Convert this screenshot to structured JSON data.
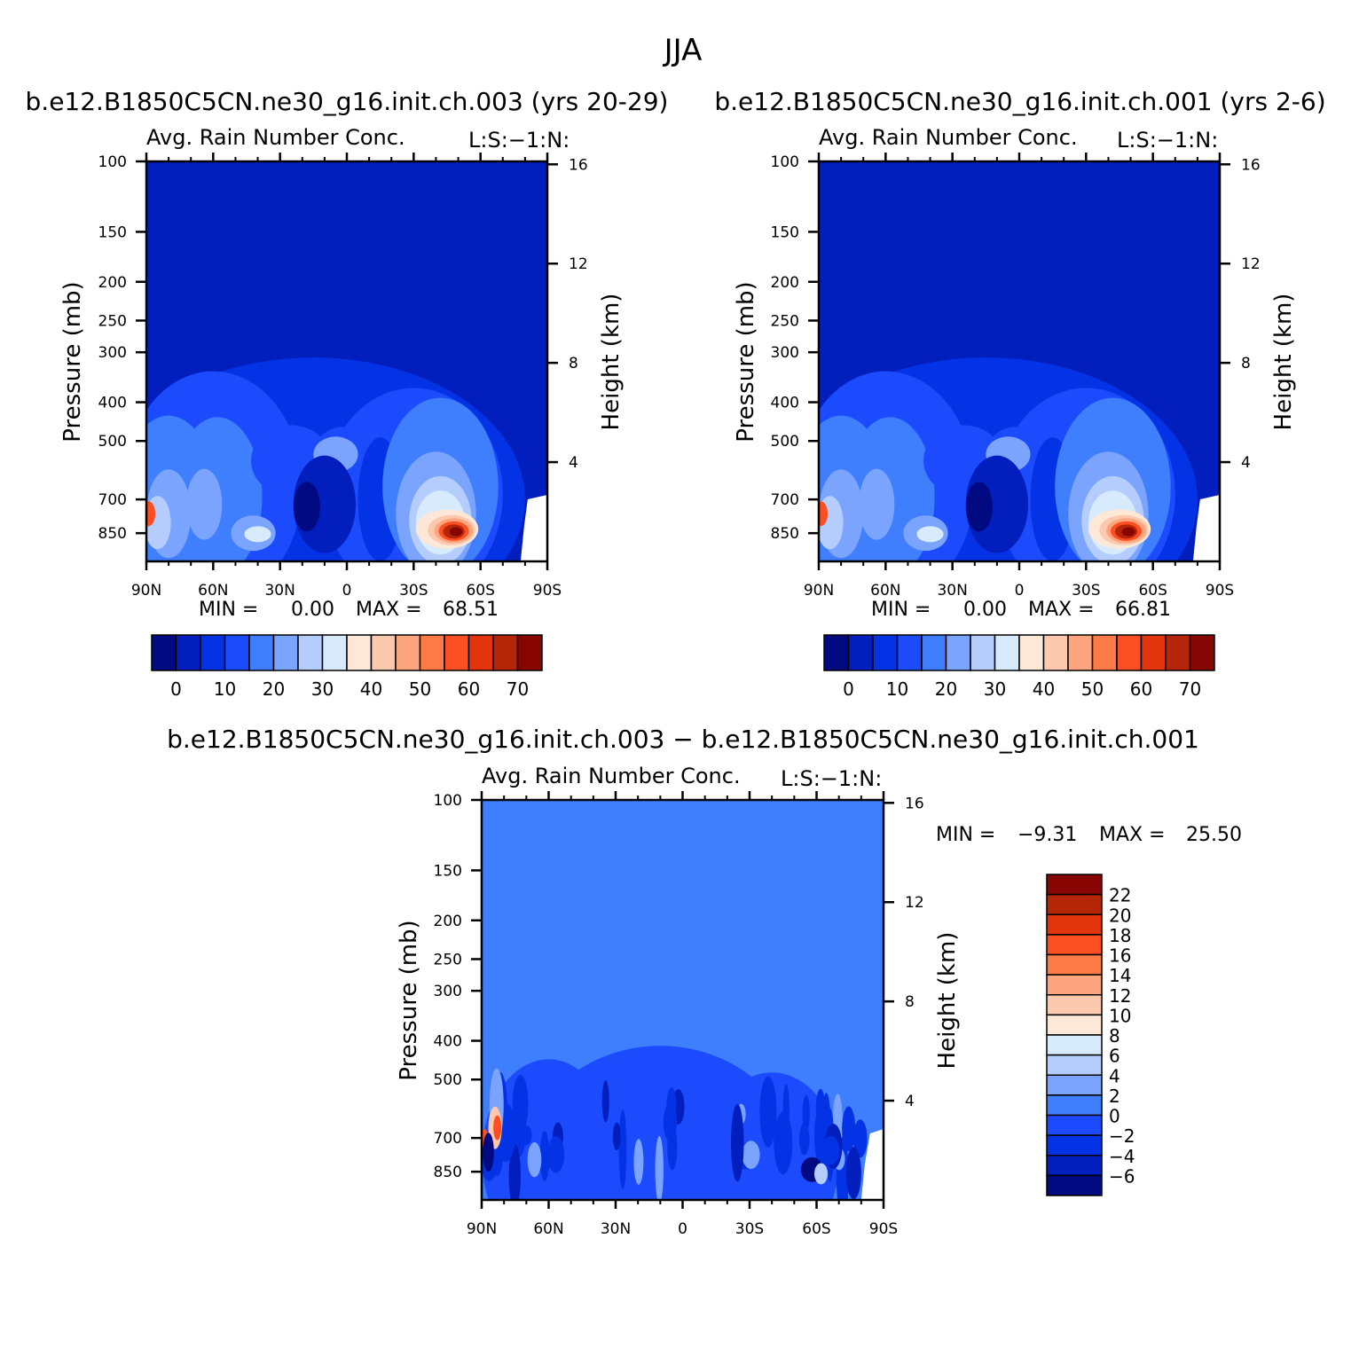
{
  "figure": {
    "title": "JJA",
    "diff_title": "b.e12.B1850C5CN.ne30_g16.init.ch.003 − b.e12.B1850C5CN.ne30_g16.init.ch.001"
  },
  "colors": {
    "background_panels": "#021fbe",
    "background_diff": "#3f7ffd",
    "palette": [
      "#010a80",
      "#021fbe",
      "#0433e5",
      "#1b4bfd",
      "#3f7ffd",
      "#7aa4fd",
      "#b5cdfc",
      "#d8ebfd",
      "#fde8d7",
      "#fcc8ae",
      "#fca57f",
      "#fc7b47",
      "#fc4f22",
      "#e2350d",
      "#b52608",
      "#870604"
    ]
  },
  "chart_data": [
    {
      "type": "heatmap",
      "case_title": "b.e12.B1850C5CN.ne30_g16.init.ch.003 (yrs 20-29)",
      "subtitle": "Avg. Rain Number Conc.",
      "units_label": "L:S:−1:N:",
      "xlabel": "",
      "ylabel": "Pressure (mb)",
      "ylabel_right": "Height (km)",
      "x_ticks": [
        "90N",
        "60N",
        "30N",
        "0",
        "30S",
        "60S",
        "90S"
      ],
      "y_ticks": [
        "100",
        "150",
        "200",
        "250",
        "300",
        "400",
        "500",
        "700",
        "850"
      ],
      "y_ticks_right": [
        "16",
        "12",
        "8",
        "4"
      ],
      "min_label": "MIN =",
      "min_value": "0.00",
      "max_label": "MAX =",
      "max_value": "68.51",
      "colorbar_labels": [
        "0",
        "10",
        "20",
        "30",
        "40",
        "50",
        "60",
        "70"
      ],
      "feature": {
        "max_lat": -47,
        "max_pressure": 840,
        "max_value": 68.51
      }
    },
    {
      "type": "heatmap",
      "case_title": "b.e12.B1850C5CN.ne30_g16.init.ch.001 (yrs 2-6)",
      "subtitle": "Avg. Rain Number Conc.",
      "units_label": "L:S:−1:N:",
      "xlabel": "",
      "ylabel": "Pressure (mb)",
      "ylabel_right": "Height (km)",
      "x_ticks": [
        "90N",
        "60N",
        "30N",
        "0",
        "30S",
        "60S",
        "90S"
      ],
      "y_ticks": [
        "100",
        "150",
        "200",
        "250",
        "300",
        "400",
        "500",
        "700",
        "850"
      ],
      "y_ticks_right": [
        "16",
        "12",
        "8",
        "4"
      ],
      "min_label": "MIN =",
      "min_value": "0.00",
      "max_label": "MAX =",
      "max_value": "66.81",
      "colorbar_labels": [
        "0",
        "10",
        "20",
        "30",
        "40",
        "50",
        "60",
        "70"
      ],
      "feature": {
        "max_lat": -45,
        "max_pressure": 840,
        "max_value": 66.81
      }
    },
    {
      "type": "heatmap",
      "subtitle": "Avg. Rain Number Conc.",
      "units_label": "L:S:−1:N:",
      "xlabel": "",
      "ylabel": "Pressure (mb)",
      "ylabel_right": "Height (km)",
      "x_ticks": [
        "90N",
        "60N",
        "30N",
        "0",
        "30S",
        "60S",
        "90S"
      ],
      "y_ticks": [
        "100",
        "150",
        "200",
        "250",
        "300",
        "400",
        "500",
        "700",
        "850"
      ],
      "y_ticks_right": [
        "16",
        "12",
        "8",
        "4"
      ],
      "min_label": "MIN =",
      "min_value": "−9.31",
      "max_label": "MAX =",
      "max_value": "25.50",
      "colorbar_labels": [
        "22",
        "20",
        "18",
        "16",
        "14",
        "12",
        "10",
        "8",
        "6",
        "4",
        "2",
        "0",
        "−2",
        "−4",
        "−6"
      ]
    }
  ]
}
